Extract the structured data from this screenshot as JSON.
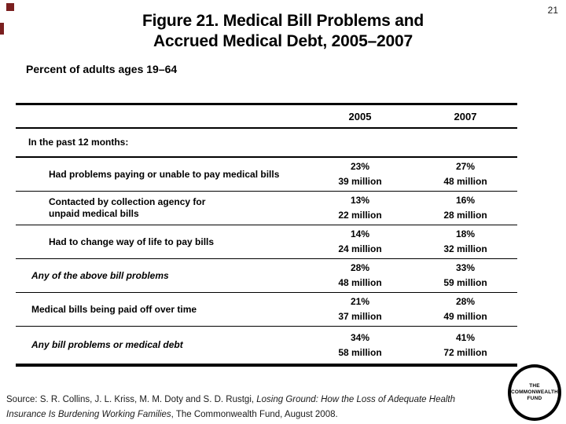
{
  "page": {
    "number": "21"
  },
  "title": {
    "line1": "Figure 21. Medical Bill Problems and",
    "line2": "Accrued Medical Debt, 2005–2007"
  },
  "subtitle": "Percent of adults ages 19–64",
  "table": {
    "col_headers": [
      "2005",
      "2007"
    ],
    "section_header": "In the past 12 months:",
    "rows": [
      {
        "label": "Had problems paying or unable to pay medical bills",
        "pct_2005": "23%",
        "mil_2005": "39 million",
        "pct_2007": "27%",
        "mil_2007": "48 million"
      },
      {
        "label": "Contacted by collection agency for",
        "label2": "unpaid medical bills",
        "pct_2005": "13%",
        "mil_2005": "22 million",
        "pct_2007": "16%",
        "mil_2007": "28 million"
      },
      {
        "label": "Had to change way of life to pay bills",
        "pct_2005": "14%",
        "mil_2005": "24 million",
        "pct_2007": "18%",
        "mil_2007": "32 million"
      },
      {
        "label": "Any of the above bill problems",
        "pct_2005": "28%",
        "mil_2005": "48 million",
        "pct_2007": "33%",
        "mil_2007": "59 million"
      },
      {
        "label": "Medical bills being paid off over time",
        "pct_2005": "21%",
        "mil_2005": "37 million",
        "pct_2007": "28%",
        "mil_2007": "49 million"
      },
      {
        "label": "Any bill problems or medical debt",
        "pct_2005": "34%",
        "mil_2005": "58 million",
        "pct_2007": "41%",
        "mil_2007": "72 million"
      }
    ]
  },
  "source": {
    "line1_regular": "Source: S. R. Collins, J. L. Kriss, M. M. Doty and S. D. Rustgi, ",
    "line1_italic": "Losing Ground: How the Loss of Adequate Health",
    "line2_italic": "Insurance Is Burdening Working Families",
    "line2_regular": ", The Commonwealth Fund, August 2008."
  },
  "logo": {
    "line1": "THE",
    "line2": "COMMONWEALTH",
    "line3": "FUND"
  },
  "colors": {
    "accent_mark": "#7a1f1f",
    "text": "#000000",
    "background": "#ffffff"
  }
}
